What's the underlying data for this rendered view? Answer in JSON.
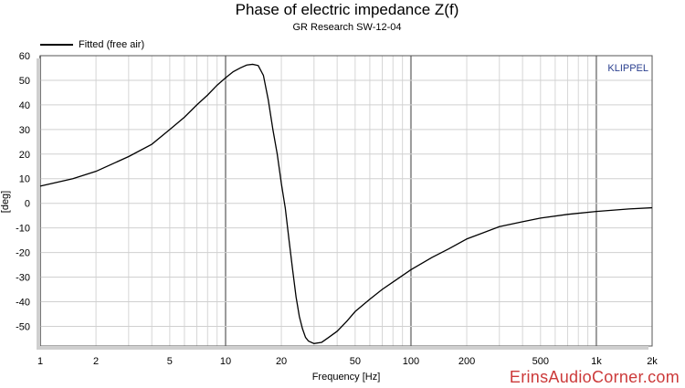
{
  "chart_data": {
    "type": "line",
    "title": "Phase of electric impedance Z(f)",
    "subtitle": "GR Research SW-12-04",
    "xlabel": "Frequency [Hz]",
    "ylabel": "[deg]",
    "x_scale": "log",
    "xlim": [
      1,
      2000
    ],
    "ylim": [
      -58,
      60
    ],
    "x_ticks": [
      1,
      2,
      5,
      10,
      20,
      50,
      100,
      200,
      500,
      1000,
      2000
    ],
    "x_tick_labels": [
      "1",
      "2",
      "5",
      "10",
      "20",
      "50",
      "100",
      "200",
      "500",
      "1k",
      "2k"
    ],
    "y_ticks": [
      60,
      50,
      40,
      30,
      20,
      10,
      0,
      -10,
      -20,
      -30,
      -40,
      -50
    ],
    "grid": true,
    "legend_position": "top-left",
    "badge": "KLIPPEL",
    "series": [
      {
        "name": "Fitted (free air)",
        "color": "#000000",
        "points": [
          [
            1,
            7
          ],
          [
            1.5,
            10
          ],
          [
            2,
            13
          ],
          [
            3,
            19
          ],
          [
            4,
            24
          ],
          [
            5,
            30
          ],
          [
            6,
            35
          ],
          [
            7,
            40
          ],
          [
            8,
            44
          ],
          [
            9,
            48
          ],
          [
            10,
            51
          ],
          [
            11,
            53.5
          ],
          [
            12,
            55
          ],
          [
            13,
            56.2
          ],
          [
            14,
            56.5
          ],
          [
            15,
            56
          ],
          [
            16,
            52
          ],
          [
            17,
            42
          ],
          [
            18,
            30
          ],
          [
            19,
            20
          ],
          [
            20,
            8
          ],
          [
            21,
            -2
          ],
          [
            22,
            -15
          ],
          [
            23,
            -27
          ],
          [
            24,
            -38
          ],
          [
            25,
            -46
          ],
          [
            26,
            -51
          ],
          [
            27,
            -54.5
          ],
          [
            28,
            -56
          ],
          [
            30,
            -57
          ],
          [
            33,
            -56.5
          ],
          [
            36,
            -54.5
          ],
          [
            40,
            -52
          ],
          [
            45,
            -48
          ],
          [
            50,
            -44
          ],
          [
            60,
            -39
          ],
          [
            70,
            -35
          ],
          [
            80,
            -32
          ],
          [
            100,
            -27
          ],
          [
            130,
            -22
          ],
          [
            160,
            -18.5
          ],
          [
            200,
            -14.5
          ],
          [
            300,
            -9.5
          ],
          [
            400,
            -7.5
          ],
          [
            500,
            -6
          ],
          [
            700,
            -4.5
          ],
          [
            1000,
            -3.3
          ],
          [
            1500,
            -2.3
          ],
          [
            2000,
            -1.8
          ]
        ]
      }
    ]
  },
  "watermark": "ErinsAudioCorner.com"
}
